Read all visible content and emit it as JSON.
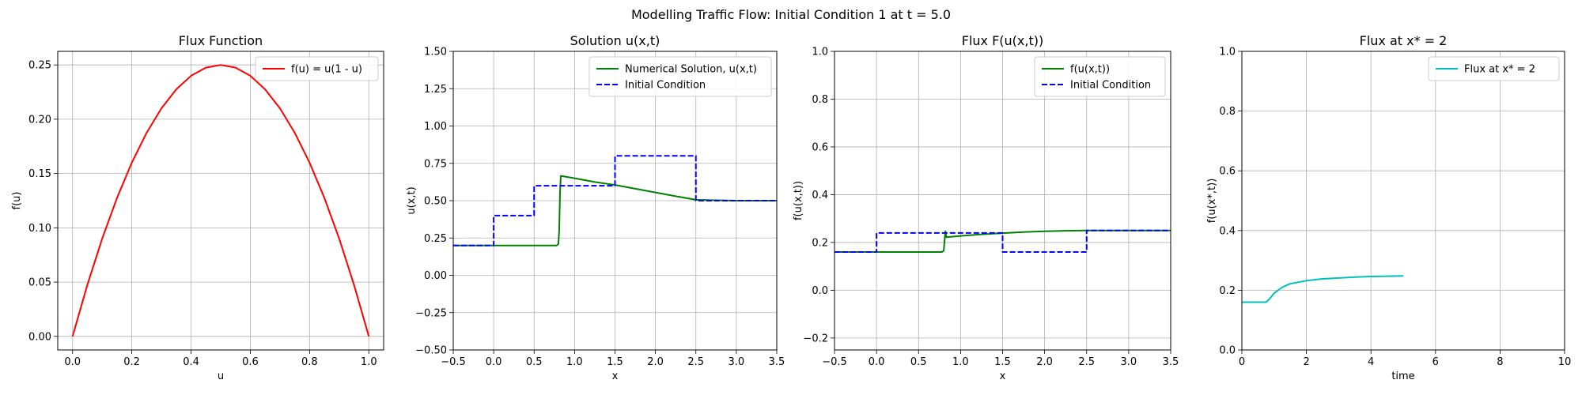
{
  "suptitle": "Modelling Traffic Flow: Initial Condition 1 at t = 5.0",
  "chart_data": [
    {
      "type": "line",
      "title": "Flux Function",
      "xlabel": "u",
      "ylabel": "f(u)",
      "xlim": [
        -0.05,
        1.05
      ],
      "ylim": [
        -0.0125,
        0.2625
      ],
      "xticks": [
        "0.0",
        "0.2",
        "0.4",
        "0.6",
        "0.8",
        "1.0"
      ],
      "yticks": [
        "0.00",
        "0.05",
        "0.10",
        "0.15",
        "0.20",
        "0.25"
      ],
      "grid": true,
      "legend_position": "upper right",
      "series": [
        {
          "name": "f(u) = u(1 - u)",
          "color": "#ff0000",
          "style": "solid",
          "x": [
            0.0,
            0.05,
            0.1,
            0.15,
            0.2,
            0.25,
            0.3,
            0.35,
            0.4,
            0.45,
            0.5,
            0.55,
            0.6,
            0.65,
            0.7,
            0.75,
            0.8,
            0.85,
            0.9,
            0.95,
            1.0
          ],
          "y": [
            0.0,
            0.0475,
            0.09,
            0.1275,
            0.16,
            0.1875,
            0.21,
            0.2275,
            0.24,
            0.2475,
            0.25,
            0.2475,
            0.24,
            0.2275,
            0.21,
            0.1875,
            0.16,
            0.1275,
            0.09,
            0.0475,
            0.0
          ]
        }
      ]
    },
    {
      "type": "line",
      "title": "Solution u(x,t)",
      "xlabel": "x",
      "ylabel": "u(x,t)",
      "xlim": [
        -0.5,
        3.5
      ],
      "ylim": [
        -0.5,
        1.5
      ],
      "xticks": [
        "−0.5",
        "0.0",
        "0.5",
        "1.0",
        "1.5",
        "2.0",
        "2.5",
        "3.0",
        "3.5"
      ],
      "yticks": [
        "−0.50",
        "−0.25",
        "0.00",
        "0.25",
        "0.50",
        "0.75",
        "1.00",
        "1.25",
        "1.50"
      ],
      "grid": true,
      "legend_position": "upper right",
      "series": [
        {
          "name": "Numerical Solution, u(x,t)",
          "color": "#008000",
          "style": "solid",
          "x": [
            -0.5,
            0.78,
            0.8,
            0.81,
            0.82,
            0.83,
            1.0,
            1.25,
            1.5,
            1.75,
            2.0,
            2.25,
            2.5,
            3.0,
            3.5
          ],
          "y": [
            0.2,
            0.2,
            0.21,
            0.3,
            0.55,
            0.666,
            0.65,
            0.625,
            0.605,
            0.58,
            0.555,
            0.53,
            0.506,
            0.5,
            0.5
          ]
        },
        {
          "name": "Initial Condition",
          "color": "#0000ff",
          "style": "dashed",
          "x": [
            -0.5,
            0.0,
            0.0,
            0.5,
            0.5,
            1.5,
            1.5,
            2.5,
            2.5,
            3.5
          ],
          "y": [
            0.2,
            0.2,
            0.4,
            0.4,
            0.6,
            0.6,
            0.8,
            0.8,
            0.5,
            0.5
          ]
        }
      ]
    },
    {
      "type": "line",
      "title": "Flux F(u(x,t))",
      "xlabel": "x",
      "ylabel": "f(u(x,t))",
      "xlim": [
        -0.5,
        3.5
      ],
      "ylim": [
        -0.25,
        1.0
      ],
      "xticks": [
        "−0.5",
        "0.0",
        "0.5",
        "1.0",
        "1.5",
        "2.0",
        "2.5",
        "3.0",
        "3.5"
      ],
      "yticks": [
        "−0.2",
        "0.0",
        "0.2",
        "0.4",
        "0.6",
        "0.8",
        "1.0"
      ],
      "grid": true,
      "legend_position": "upper right",
      "series": [
        {
          "name": "f(u(x,t))",
          "color": "#008000",
          "style": "solid",
          "x": [
            -0.5,
            0.78,
            0.8,
            0.81,
            0.82,
            0.83,
            1.0,
            1.25,
            1.5,
            1.75,
            2.0,
            2.25,
            2.5,
            3.0,
            3.5
          ],
          "y": [
            0.16,
            0.16,
            0.166,
            0.21,
            0.2475,
            0.222,
            0.2275,
            0.234,
            0.239,
            0.2436,
            0.247,
            0.249,
            0.25,
            0.25,
            0.25
          ]
        },
        {
          "name": "Initial Condition",
          "color": "#0000ff",
          "style": "dashed",
          "x": [
            -0.5,
            0.0,
            0.0,
            0.5,
            0.5,
            1.5,
            1.5,
            2.5,
            2.5,
            3.5
          ],
          "y": [
            0.16,
            0.16,
            0.24,
            0.24,
            0.24,
            0.24,
            0.16,
            0.16,
            0.25,
            0.25
          ]
        }
      ]
    },
    {
      "type": "line",
      "title": "Flux at x* = 2",
      "xlabel": "time",
      "ylabel": "f(u(x*,t))",
      "xlim": [
        0,
        10
      ],
      "ylim": [
        0.0,
        1.0
      ],
      "xticks": [
        "0",
        "2",
        "4",
        "6",
        "8",
        "10"
      ],
      "yticks": [
        "0.0",
        "0.2",
        "0.4",
        "0.6",
        "0.8",
        "1.0"
      ],
      "grid": true,
      "legend_position": "upper right",
      "series": [
        {
          "name": "Flux at x* = 2",
          "color": "#00bfbf",
          "style": "solid",
          "x": [
            0.0,
            0.75,
            0.85,
            1.0,
            1.25,
            1.5,
            2.0,
            2.5,
            3.0,
            3.5,
            4.0,
            4.5,
            5.0
          ],
          "y": [
            0.16,
            0.16,
            0.17,
            0.19,
            0.21,
            0.222,
            0.232,
            0.238,
            0.241,
            0.244,
            0.246,
            0.247,
            0.248
          ]
        }
      ]
    }
  ]
}
